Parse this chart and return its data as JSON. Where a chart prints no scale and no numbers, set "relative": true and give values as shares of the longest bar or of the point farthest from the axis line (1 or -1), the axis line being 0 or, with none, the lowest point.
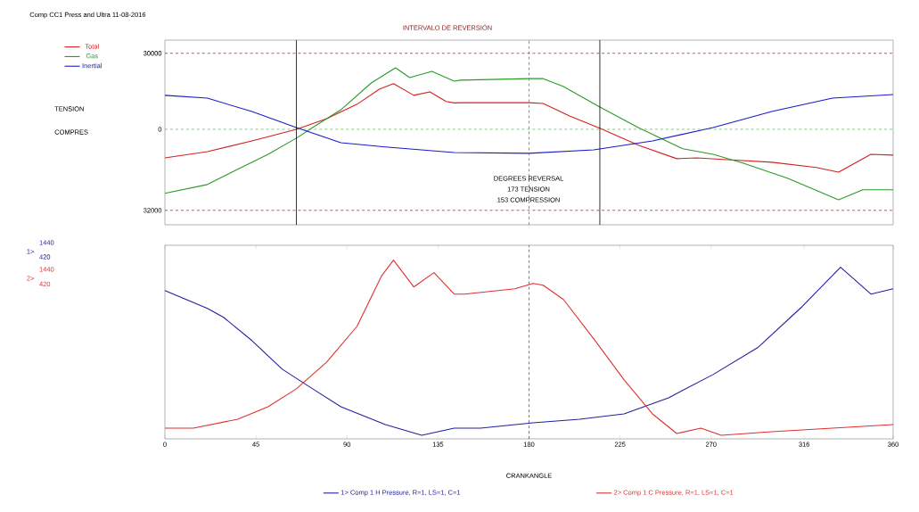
{
  "chart_data": [
    {
      "type": "line",
      "title": "Comp CC1  Press and Ultra 11-08-2016",
      "xlim": [
        0,
        360
      ],
      "ylim": [
        -37700,
        35200
      ],
      "yticks": [
        30000,
        0,
        {
          "value": -32000,
          "label": "32000"
        }
      ],
      "tick_labels": "y",
      "legend": "top left",
      "series": [
        {
          "name": "Total",
          "color": "#d42020",
          "x": [
            0,
            21,
            43,
            65,
            80,
            95,
            106,
            113,
            123,
            131,
            139,
            143,
            147,
            180,
            187,
            200,
            215,
            234,
            253,
            263,
            278,
            300,
            322,
            333,
            349,
            360
          ],
          "values": [
            -11300,
            -8800,
            -4600,
            0,
            4200,
            9900,
            15800,
            18000,
            13400,
            14800,
            11000,
            10400,
            10500,
            10500,
            10200,
            5300,
            400,
            -6300,
            -11600,
            -11300,
            -12000,
            -13000,
            -15100,
            -16900,
            -9900,
            -10200
          ]
        },
        {
          "name": "Gas",
          "color": "#2a9a2a",
          "x": [
            0,
            21,
            36,
            51,
            65,
            73,
            87,
            102,
            114,
            121,
            132,
            143,
            146,
            180,
            187,
            197,
            215,
            234,
            256,
            271,
            286,
            308,
            333,
            345,
            360
          ],
          "values": [
            -25300,
            -21800,
            -15800,
            -9900,
            -3500,
            700,
            7700,
            18300,
            24300,
            20400,
            22900,
            19000,
            19400,
            20000,
            20000,
            16900,
            8800,
            700,
            -7700,
            -9900,
            -13400,
            -19400,
            -27800,
            -23900,
            -23900
          ]
        },
        {
          "name": "Inertial",
          "color": "#1a1acc",
          "x": [
            0,
            21,
            43,
            65,
            87,
            109,
            143,
            180,
            212,
            241,
            271,
            300,
            330,
            360
          ],
          "values": [
            13400,
            12300,
            7000,
            700,
            -5300,
            -7000,
            -9200,
            -9500,
            -8100,
            -4600,
            700,
            7000,
            12300,
            13700
          ]
        }
      ],
      "ref_lines": [
        {
          "axis": "y",
          "value": 30000,
          "color": "#cc2020",
          "line_style": "dashed"
        },
        {
          "axis": "y",
          "value": 0,
          "color": "#6ab86a",
          "line_style": "dashed"
        },
        {
          "axis": "y",
          "value": -32000,
          "color": "#cc2020",
          "line_style": "dashed"
        },
        {
          "axis": "x",
          "value": 65,
          "color": "#000000",
          "line_style": "solid"
        },
        {
          "axis": "x",
          "value": 215,
          "color": "#000000",
          "line_style": "solid"
        },
        {
          "axis": "x",
          "value": 180,
          "color": "#22aa22",
          "line_style": "dashed"
        }
      ],
      "annotations": [
        "INTERVALO DE REVERSIÓN",
        "TENSION",
        "COMPRES",
        "DEGREES REVERSAL",
        "173 TENSION",
        "153 COMPRESSION"
      ]
    },
    {
      "type": "line",
      "relative": true,
      "xlim": [
        0,
        360
      ],
      "xticks": [
        0,
        45,
        90,
        135,
        180,
        225,
        270,
        316,
        360
      ],
      "xlabel": "CRANKANGLE",
      "tick_labels": "x",
      "legend": "bottom",
      "series": [
        {
          "name": "1> Comp 1 H Pressure, R=1, LS=1, C=1",
          "color": "#2020a0",
          "x": [
            0,
            21,
            29,
            43,
            58,
            73,
            87,
            109,
            127,
            143,
            156,
            182,
            205,
            227,
            249,
            271,
            293,
            315,
            334,
            349,
            360
          ],
          "values": [
            0.83,
            0.73,
            0.68,
            0.55,
            0.39,
            0.28,
            0.18,
            0.08,
            0.02,
            0.06,
            0.06,
            0.09,
            0.11,
            0.14,
            0.23,
            0.36,
            0.51,
            0.74,
            0.96,
            0.81,
            0.84
          ]
        },
        {
          "name": "2> Comp 1 C Pressure, R=1, LS=1, C=1",
          "color": "#e03030",
          "x": [
            0,
            14,
            36,
            51,
            65,
            80,
            95,
            107,
            113,
            123,
            133,
            143,
            148,
            173,
            182,
            187,
            197,
            212,
            227,
            241,
            253,
            265,
            275,
            300,
            330,
            360
          ],
          "values": [
            0.06,
            0.06,
            0.11,
            0.18,
            0.28,
            0.43,
            0.63,
            0.91,
            1,
            0.85,
            0.93,
            0.81,
            0.81,
            0.84,
            0.87,
            0.86,
            0.78,
            0.56,
            0.33,
            0.14,
            0.03,
            0.06,
            0.02,
            0.04,
            0.06,
            0.08
          ]
        }
      ],
      "ref_lines": [
        {
          "axis": "x",
          "value": 180,
          "color": "#555555",
          "line_style": "dashed"
        }
      ],
      "annotations": [
        "1>",
        "1440",
        "420",
        "2>",
        "1440",
        "420"
      ]
    }
  ]
}
